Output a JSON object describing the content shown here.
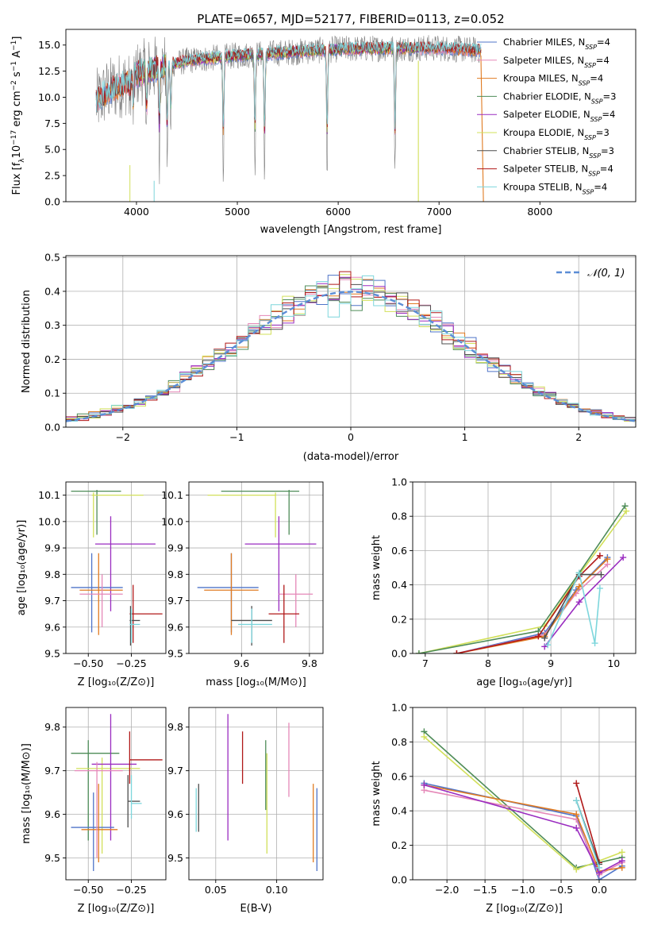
{
  "figure": {
    "title": "PLATE=0657, MJD=52177, FIBERID=0113, z=0.052"
  },
  "colors": {
    "Chabrier MILES": "#4f74c8",
    "Salpeter MILES": "#e588b8",
    "Kroupa MILES": "#e07b22",
    "Chabrier ELODIE": "#4e8c58",
    "Salpeter ELODIE": "#9a2cc0",
    "Kroupa ELODIE": "#d2e05a",
    "Chabrier STELIB": "#4d4d4d",
    "Salpeter STELIB": "#b01818",
    "Kroupa STELIB": "#7dd6dc",
    "data": "#808080",
    "normal": "#5b8dd6"
  },
  "chart_data": [
    {
      "id": "spectrum",
      "type": "line",
      "title": "PLATE=0657, MJD=52177, FIBERID=0113, z=0.052",
      "xlabel": "wavelength [Angstrom, rest frame]",
      "ylabel_parts": [
        "Flux [f",
        "λ",
        "10",
        "−17",
        " erg cm",
        "−2",
        " s",
        "−1",
        " A",
        "−1",
        "]"
      ],
      "xlim": [
        3300,
        8950
      ],
      "ylim": [
        0,
        16.5
      ],
      "xticks": [
        4000,
        5000,
        6000,
        7000,
        8000
      ],
      "yticks": [
        0.0,
        2.5,
        5.0,
        7.5,
        10.0,
        12.5,
        15.0
      ],
      "ytick_labels": [
        "0.0",
        "2.5",
        "5.0",
        "7.5",
        "10.0",
        "12.5",
        "15.0"
      ],
      "legend_position": "upper right",
      "legend": [
        {
          "name": "Chabrier MILES",
          "nssp": "4"
        },
        {
          "name": "Salpeter MILES",
          "nssp": "4"
        },
        {
          "name": "Kroupa MILES",
          "nssp": "4"
        },
        {
          "name": "Chabrier ELODIE",
          "nssp": "3"
        },
        {
          "name": "Salpeter ELODIE",
          "nssp": "4"
        },
        {
          "name": "Kroupa ELODIE",
          "nssp": "3"
        },
        {
          "name": "Chabrier STELIB",
          "nssp": "3"
        },
        {
          "name": "Salpeter STELIB",
          "nssp": "4"
        },
        {
          "name": "Kroupa STELIB",
          "nssp": "4"
        }
      ],
      "continuum": [
        [
          3600,
          9.5
        ],
        [
          3700,
          10.5
        ],
        [
          3800,
          11.0
        ],
        [
          3900,
          11.4
        ],
        [
          4000,
          12.2
        ],
        [
          4200,
          12.8
        ],
        [
          4500,
          13.5
        ],
        [
          5000,
          14.0
        ],
        [
          5500,
          14.3
        ],
        [
          6000,
          14.6
        ],
        [
          6500,
          14.7
        ],
        [
          7000,
          14.7
        ],
        [
          7400,
          14.5
        ]
      ],
      "dips": [
        [
          3933,
          2.0
        ],
        [
          3968,
          3.5
        ],
        [
          4101,
          5.5
        ],
        [
          4227,
          9.0
        ],
        [
          4304,
          10.0
        ],
        [
          4340,
          7.0
        ],
        [
          4861,
          12.0
        ],
        [
          5175,
          11.8
        ],
        [
          5270,
          12.7
        ],
        [
          5890,
          12.8
        ],
        [
          6563,
          13.0
        ]
      ]
    },
    {
      "id": "residuals",
      "type": "histogram",
      "xlabel": "(data-model)/error",
      "ylabel": "Normed distribution",
      "xlim": [
        -2.5,
        2.5
      ],
      "ylim": [
        0,
        0.505
      ],
      "xticks": [
        -2,
        -1,
        0,
        1,
        2
      ],
      "xtick_labels": [
        "−2",
        "−1",
        "0",
        "1",
        "2"
      ],
      "yticks": [
        0.0,
        0.1,
        0.2,
        0.3,
        0.4,
        0.5
      ],
      "ytick_labels": [
        "0.0",
        "0.1",
        "0.2",
        "0.3",
        "0.4",
        "0.5"
      ],
      "legend": "𝒩(0, 1)",
      "legend_position": "upper right",
      "bin_width": 0.1
    },
    {
      "id": "age_vs_Z",
      "type": "errorbar",
      "xlabel": "Z [log₁₀(Z/Z⊙)]",
      "ylabel": "age  [log₁₀(age/yr)]",
      "xlim": [
        -0.63,
        -0.05
      ],
      "ylim": [
        9.5,
        10.15
      ],
      "xticks": [
        -0.5,
        -0.25
      ],
      "xtick_labels": [
        "−0.50",
        "−0.25"
      ],
      "yticks": [
        9.5,
        9.6,
        9.7,
        9.8,
        9.9,
        10.0,
        10.1
      ],
      "ytick_labels": [
        "9.5",
        "9.6",
        "9.7",
        "9.8",
        "9.9",
        "10.0",
        "10.1"
      ],
      "points": [
        {
          "s": "Chabrier ELODIE",
          "x": -0.45,
          "xe": [
            -0.6,
            -0.31
          ],
          "y": 10.115,
          "ye": [
            9.95,
            10.12
          ]
        },
        {
          "s": "Kroupa ELODIE",
          "x": -0.47,
          "xe": [
            -0.48,
            -0.18
          ],
          "y": 10.1,
          "ye": [
            9.94,
            10.11
          ]
        },
        {
          "s": "Salpeter ELODIE",
          "x": -0.37,
          "xe": [
            -0.46,
            -0.11
          ],
          "y": 9.915,
          "ye": [
            9.66,
            10.02
          ]
        },
        {
          "s": "Chabrier MILES",
          "x": -0.48,
          "xe": [
            -0.6,
            -0.3
          ],
          "y": 9.75,
          "ye": [
            9.58,
            9.88
          ]
        },
        {
          "s": "Kroupa MILES",
          "x": -0.44,
          "xe": [
            -0.55,
            -0.3
          ],
          "y": 9.74,
          "ye": [
            9.57,
            9.88
          ]
        },
        {
          "s": "Salpeter MILES",
          "x": -0.42,
          "xe": [
            -0.55,
            -0.3
          ],
          "y": 9.725,
          "ye": [
            9.6,
            9.8
          ]
        },
        {
          "s": "Salpeter STELIB",
          "x": -0.24,
          "xe": [
            -0.26,
            -0.07
          ],
          "y": 9.65,
          "ye": [
            9.54,
            9.76
          ]
        },
        {
          "s": "Chabrier STELIB",
          "x": -0.255,
          "xe": [
            -0.26,
            -0.2
          ],
          "y": 9.625,
          "ye": [
            9.53,
            9.68
          ]
        },
        {
          "s": "Kroupa STELIB",
          "x": -0.25,
          "xe": [
            -0.26,
            -0.2
          ],
          "y": 9.61,
          "ye": [
            9.54,
            9.67
          ]
        }
      ]
    },
    {
      "id": "age_vs_mass",
      "type": "errorbar",
      "xlabel": "mass [log₁₀(M/M⊙)]",
      "ylabel": "",
      "xlim": [
        9.445,
        9.84
      ],
      "ylim": [
        9.5,
        10.15
      ],
      "xticks": [
        9.6,
        9.8
      ],
      "xtick_labels": [
        "9.6",
        "9.8"
      ],
      "yticks": [
        9.5,
        9.6,
        9.7,
        9.8,
        9.9,
        10.0,
        10.1
      ],
      "ytick_labels": [
        "9.5",
        "9.6",
        "9.7",
        "9.8",
        "9.9",
        "10.0",
        "10.1"
      ],
      "points": [
        {
          "s": "Chabrier ELODIE",
          "x": 9.74,
          "xe": [
            9.54,
            9.77
          ],
          "y": 10.115,
          "ye": [
            9.95,
            10.12
          ]
        },
        {
          "s": "Kroupa ELODIE",
          "x": 9.7,
          "xe": [
            9.5,
            9.7
          ],
          "y": 10.1,
          "ye": [
            9.94,
            10.11
          ]
        },
        {
          "s": "Salpeter ELODIE",
          "x": 9.71,
          "xe": [
            9.61,
            9.82
          ],
          "y": 9.915,
          "ye": [
            9.66,
            10.02
          ]
        },
        {
          "s": "Chabrier MILES",
          "x": 9.57,
          "xe": [
            9.47,
            9.65
          ],
          "y": 9.75,
          "ye": [
            9.58,
            9.88
          ]
        },
        {
          "s": "Kroupa MILES",
          "x": 9.57,
          "xe": [
            9.49,
            9.65
          ],
          "y": 9.74,
          "ye": [
            9.57,
            9.88
          ]
        },
        {
          "s": "Salpeter MILES",
          "x": 9.76,
          "xe": [
            9.71,
            9.81
          ],
          "y": 9.725,
          "ye": [
            9.6,
            9.8
          ]
        },
        {
          "s": "Salpeter STELIB",
          "x": 9.725,
          "xe": [
            9.68,
            9.77
          ],
          "y": 9.65,
          "ye": [
            9.54,
            9.76
          ]
        },
        {
          "s": "Chabrier STELIB",
          "x": 9.63,
          "xe": [
            9.57,
            9.69
          ],
          "y": 9.625,
          "ye": [
            9.53,
            9.68
          ]
        },
        {
          "s": "Kroupa STELIB",
          "x": 9.63,
          "xe": [
            9.59,
            9.69
          ],
          "y": 9.61,
          "ye": [
            9.54,
            9.67
          ]
        }
      ]
    },
    {
      "id": "weight_vs_age",
      "type": "line",
      "xlabel": "age  [log₁₀(age/yr)]",
      "ylabel": "mass weight",
      "xlim": [
        6.8,
        10.35
      ],
      "ylim": [
        0,
        1.0
      ],
      "xticks": [
        7,
        8,
        9,
        10
      ],
      "xtick_labels": [
        "7",
        "8",
        "9",
        "10"
      ],
      "yticks": [
        0.0,
        0.2,
        0.4,
        0.6,
        0.8,
        1.0
      ],
      "ytick_labels": [
        "0.0",
        "0.2",
        "0.4",
        "0.6",
        "0.8",
        "1.0"
      ],
      "series": [
        {
          "s": "Kroupa ELODIE",
          "x": [
            6.9,
            8.9,
            9.45,
            10.2
          ],
          "y": [
            0.0,
            0.16,
            0.46,
            0.83
          ]
        },
        {
          "s": "Chabrier ELODIE",
          "x": [
            6.9,
            8.8,
            9.45,
            10.18
          ],
          "y": [
            0.0,
            0.13,
            0.47,
            0.86
          ]
        },
        {
          "s": "Chabrier MILES",
          "x": [
            7.5,
            8.9,
            9.4,
            9.9
          ],
          "y": [
            0.0,
            0.12,
            0.37,
            0.56
          ]
        },
        {
          "s": "Salpeter MILES",
          "x": [
            7.5,
            8.9,
            9.4,
            9.9
          ],
          "y": [
            0.0,
            0.11,
            0.35,
            0.52
          ]
        },
        {
          "s": "Kroupa MILES",
          "x": [
            7.5,
            8.9,
            9.45,
            9.9
          ],
          "y": [
            0.0,
            0.1,
            0.39,
            0.55
          ]
        },
        {
          "s": "Salpeter STELIB",
          "x": [
            7.5,
            8.8,
            9.45,
            9.78
          ],
          "y": [
            0.0,
            0.1,
            0.45,
            0.57
          ]
        },
        {
          "s": "Chabrier STELIB",
          "x": [
            8.9,
            9.45,
            9.8
          ],
          "y": [
            0.09,
            0.46,
            0.46
          ]
        },
        {
          "s": "Salpeter ELODIE",
          "x": [
            8.9,
            9.45,
            10.15
          ],
          "y": [
            0.04,
            0.3,
            0.56
          ]
        },
        {
          "s": "Kroupa STELIB",
          "x": [
            8.95,
            9.45,
            9.7,
            9.78
          ],
          "y": [
            0.05,
            0.47,
            0.06,
            0.38
          ]
        }
      ]
    },
    {
      "id": "mass_vs_Z",
      "type": "errorbar",
      "xlabel": "Z [log₁₀(Z/Z⊙)]",
      "ylabel": "mass [log₁₀(M/M⊙)]",
      "xlim": [
        -0.63,
        -0.05
      ],
      "ylim": [
        9.45,
        9.845
      ],
      "xticks": [
        -0.5,
        -0.25
      ],
      "xtick_labels": [
        "−0.50",
        "−0.25"
      ],
      "yticks": [
        9.5,
        9.6,
        9.7,
        9.8
      ],
      "ytick_labels": [
        "9.5",
        "9.6",
        "9.7",
        "9.8"
      ],
      "points": [
        {
          "s": "Chabrier ELODIE",
          "x": -0.5,
          "xe": [
            -0.6,
            -0.32
          ],
          "y": 9.74,
          "ye": [
            9.54,
            9.77
          ]
        },
        {
          "s": "Kroupa ELODIE",
          "x": -0.42,
          "xe": [
            -0.57,
            -0.2
          ],
          "y": 9.705,
          "ye": [
            9.51,
            9.73
          ]
        },
        {
          "s": "Salpeter ELODIE",
          "x": -0.37,
          "xe": [
            -0.48,
            -0.22
          ],
          "y": 9.715,
          "ye": [
            9.54,
            9.83
          ]
        },
        {
          "s": "Chabrier MILES",
          "x": -0.47,
          "xe": [
            -0.6,
            -0.35
          ],
          "y": 9.57,
          "ye": [
            9.47,
            9.65
          ]
        },
        {
          "s": "Kroupa MILES",
          "x": -0.44,
          "xe": [
            -0.54,
            -0.33
          ],
          "y": 9.565,
          "ye": [
            9.49,
            9.67
          ]
        },
        {
          "s": "Salpeter MILES",
          "x": -0.45,
          "xe": [
            -0.58,
            -0.3
          ],
          "y": 9.7,
          "ye": [
            9.5,
            9.72
          ]
        },
        {
          "s": "Salpeter STELIB",
          "x": -0.26,
          "xe": [
            -0.26,
            -0.07
          ],
          "y": 9.725,
          "ye": [
            9.67,
            9.79
          ]
        },
        {
          "s": "Chabrier STELIB",
          "x": -0.27,
          "xe": [
            -0.27,
            -0.2
          ],
          "y": 9.63,
          "ye": [
            9.57,
            9.69
          ]
        },
        {
          "s": "Kroupa STELIB",
          "x": -0.25,
          "xe": [
            -0.25,
            -0.19
          ],
          "y": 9.625,
          "ye": [
            9.59,
            9.69
          ]
        }
      ]
    },
    {
      "id": "mass_vs_ebv",
      "type": "errorbar",
      "xlabel": "E(B-V)",
      "ylabel": "",
      "xlim": [
        0.028,
        0.138
      ],
      "ylim": [
        9.45,
        9.845
      ],
      "xticks": [
        0.05,
        0.1
      ],
      "xtick_labels": [
        "0.05",
        "0.10"
      ],
      "yticks": [
        9.5,
        9.6,
        9.7,
        9.8
      ],
      "ytick_labels": [
        "9.5",
        "9.6",
        "9.7",
        "9.8"
      ],
      "points": [
        {
          "s": "Chabrier MILES",
          "x": 0.133,
          "y": 9.57,
          "ye": [
            9.47,
            9.66
          ]
        },
        {
          "s": "Kroupa MILES",
          "x": 0.13,
          "y": 9.58,
          "ye": [
            9.49,
            9.67
          ]
        },
        {
          "s": "Salpeter MILES",
          "x": 0.11,
          "y": 9.73,
          "ye": [
            9.64,
            9.81
          ]
        },
        {
          "s": "Salpeter ELODIE",
          "x": 0.06,
          "y": 9.69,
          "ye": [
            9.54,
            9.83
          ]
        },
        {
          "s": "Salpeter STELIB",
          "x": 0.072,
          "y": 9.73,
          "ye": [
            9.67,
            9.79
          ]
        },
        {
          "s": "Chabrier ELODIE",
          "x": 0.091,
          "y": 9.7,
          "ye": [
            9.61,
            9.77
          ]
        },
        {
          "s": "Kroupa ELODIE",
          "x": 0.092,
          "y": 9.62,
          "ye": [
            9.51,
            9.74
          ]
        },
        {
          "s": "Chabrier STELIB",
          "x": 0.036,
          "y": 9.62,
          "ye": [
            9.56,
            9.67
          ]
        },
        {
          "s": "Kroupa STELIB",
          "x": 0.034,
          "y": 9.61,
          "ye": [
            9.56,
            9.66
          ]
        }
      ]
    },
    {
      "id": "weight_vs_Z",
      "type": "line",
      "xlabel": "Z [log₁₀(Z/Z⊙)]",
      "ylabel": "mass weight",
      "xlim": [
        -2.45,
        0.48
      ],
      "ylim": [
        0,
        1.0
      ],
      "xticks": [
        -2.0,
        -1.5,
        -1.0,
        -0.5,
        0.0
      ],
      "xtick_labels": [
        "−2.0",
        "−1.5",
        "−1.0",
        "−0.5",
        "0.0"
      ],
      "yticks": [
        0.0,
        0.2,
        0.4,
        0.6,
        0.8,
        1.0
      ],
      "ytick_labels": [
        "0.0",
        "0.2",
        "0.4",
        "0.6",
        "0.8",
        "1.0"
      ],
      "series": [
        {
          "s": "Chabrier ELODIE",
          "x": [
            -2.3,
            -0.3,
            0.3
          ],
          "y": [
            0.86,
            0.07,
            0.13
          ]
        },
        {
          "s": "Kroupa ELODIE",
          "x": [
            -2.3,
            -0.3,
            0.3
          ],
          "y": [
            0.83,
            0.06,
            0.16
          ]
        },
        {
          "s": "Chabrier MILES",
          "x": [
            -2.3,
            -0.3,
            0.0,
            0.3
          ],
          "y": [
            0.56,
            0.37,
            0.0,
            0.08
          ]
        },
        {
          "s": "Salpeter MILES",
          "x": [
            -2.3,
            -0.3,
            0.0,
            0.3
          ],
          "y": [
            0.52,
            0.35,
            0.03,
            0.1
          ]
        },
        {
          "s": "Kroupa MILES",
          "x": [
            -2.3,
            -0.3,
            0.0,
            0.3
          ],
          "y": [
            0.55,
            0.38,
            0.05,
            0.07
          ]
        },
        {
          "s": "Salpeter ELODIE",
          "x": [
            -2.3,
            -0.3,
            0.0,
            0.3
          ],
          "y": [
            0.55,
            0.3,
            0.04,
            0.11
          ]
        },
        {
          "s": "Salpeter STELIB",
          "x": [
            -0.3,
            0.0
          ],
          "y": [
            0.56,
            0.1
          ]
        },
        {
          "s": "Chabrier STELIB",
          "x": [
            -0.3,
            0.0
          ],
          "y": [
            0.46,
            0.09
          ]
        },
        {
          "s": "Kroupa STELIB",
          "x": [
            -0.3,
            0.0
          ],
          "y": [
            0.46,
            0.07
          ]
        }
      ]
    }
  ]
}
